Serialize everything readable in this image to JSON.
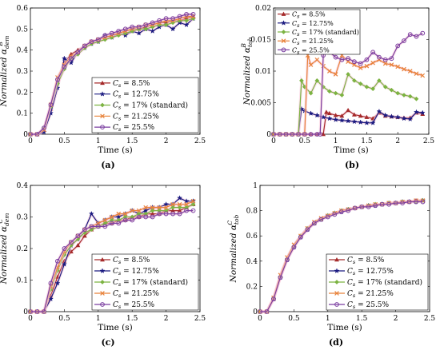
{
  "colors": {
    "8.5%": "#a52a2a",
    "12.75%": "#1a1a80",
    "17% (standard)": "#7cb342",
    "21.25%": "#e8823a",
    "25.5%": "#7b3fa0",
    "glow": "#f7c6d9"
  },
  "chart_data": [
    {
      "type": "line",
      "panel_label": "(a)",
      "xlabel": "Time (s)",
      "ylabel_main": "Normalized α",
      "ylabel_sub": "dem",
      "ylabel_sup": "B",
      "xlim": [
        0,
        2.5
      ],
      "ylim": [
        0,
        0.6
      ],
      "xticks": [
        0,
        0.5,
        1,
        1.5,
        2,
        2.5
      ],
      "yticks": [
        0,
        0.1,
        0.2,
        0.3,
        0.4,
        0.5,
        0.6
      ],
      "xtick_labels": [
        "0",
        "0.5",
        "1",
        "1.5",
        "2",
        "2.5"
      ],
      "ytick_labels": [
        "0",
        "0.1",
        "0.2",
        "0.3",
        "0.4",
        "0.5",
        "0.6"
      ],
      "legend": "bottom-right",
      "legend_labels": [
        "C_s = 8.5%",
        "C_s = 12.75%",
        "C_s = 17% (standard)",
        "C_s = 21.25%",
        "C_s = 25.5%"
      ],
      "x": [
        0,
        0.1,
        0.2,
        0.3,
        0.4,
        0.5,
        0.6,
        0.7,
        0.8,
        0.9,
        1.0,
        1.1,
        1.2,
        1.3,
        1.4,
        1.5,
        1.6,
        1.7,
        1.8,
        1.9,
        2.0,
        2.1,
        2.2,
        2.3,
        2.4
      ],
      "series": [
        {
          "key": "8.5%",
          "marker": "triangle",
          "values": [
            0,
            0,
            0.02,
            0.12,
            0.25,
            0.34,
            0.38,
            0.4,
            0.42,
            0.44,
            0.45,
            0.46,
            0.47,
            0.48,
            0.49,
            0.5,
            0.5,
            0.51,
            0.52,
            0.53,
            0.53,
            0.54,
            0.54,
            0.55,
            0.56
          ]
        },
        {
          "key": "12.75%",
          "marker": "star",
          "values": [
            0,
            0,
            0.01,
            0.1,
            0.22,
            0.36,
            0.34,
            0.39,
            0.41,
            0.43,
            0.44,
            0.47,
            0.46,
            0.48,
            0.47,
            0.49,
            0.48,
            0.5,
            0.49,
            0.51,
            0.52,
            0.5,
            0.53,
            0.52,
            0.55
          ]
        },
        {
          "key": "17% (standard)",
          "marker": "diamond",
          "values": [
            0,
            0,
            0.03,
            0.13,
            0.24,
            0.31,
            0.36,
            0.38,
            0.41,
            0.43,
            0.44,
            0.45,
            0.46,
            0.47,
            0.48,
            0.49,
            0.5,
            0.5,
            0.51,
            0.52,
            0.52,
            0.53,
            0.54,
            0.54,
            0.55
          ]
        },
        {
          "key": "21.25%",
          "marker": "x",
          "values": [
            0,
            0,
            0.02,
            0.14,
            0.27,
            0.33,
            0.37,
            0.39,
            0.42,
            0.44,
            0.45,
            0.46,
            0.47,
            0.48,
            0.49,
            0.5,
            0.51,
            0.52,
            0.52,
            0.53,
            0.54,
            0.54,
            0.55,
            0.56,
            0.56
          ]
        },
        {
          "key": "25.5%",
          "marker": "circle",
          "values": [
            0,
            0,
            0.03,
            0.14,
            0.26,
            0.32,
            0.36,
            0.39,
            0.42,
            0.44,
            0.45,
            0.47,
            0.48,
            0.49,
            0.5,
            0.51,
            0.51,
            0.52,
            0.53,
            0.54,
            0.55,
            0.55,
            0.56,
            0.57,
            0.57
          ]
        }
      ]
    },
    {
      "type": "line",
      "panel_label": "(b)",
      "xlabel": "Time (s)",
      "ylabel_main": "Normalized α",
      "ylabel_sub": "tob",
      "ylabel_sup": "B",
      "xlim": [
        0,
        2.5
      ],
      "ylim": [
        0,
        0.02
      ],
      "xticks": [
        0,
        0.5,
        1,
        1.5,
        2,
        2.5
      ],
      "yticks": [
        0,
        0.005,
        0.01,
        0.015,
        0.02
      ],
      "xtick_labels": [
        "0",
        "0.5",
        "1",
        "1.5",
        "2",
        "2.5"
      ],
      "ytick_labels": [
        "0",
        "0.005",
        "0.01",
        "0.015",
        "0.02"
      ],
      "legend": "top-left",
      "legend_labels": [
        "C_s = 8.5%",
        "C_s = 12.75%",
        "C_s = 17% (standard)",
        "C_s = 21.25%",
        "C_s = 25.5%"
      ],
      "series": [
        {
          "key": "8.5%",
          "marker": "triangle",
          "x": [
            0,
            0.1,
            0.2,
            0.3,
            0.4,
            0.5,
            0.6,
            0.7,
            0.8,
            0.85,
            0.9,
            1.0,
            1.1,
            1.2,
            1.3,
            1.4,
            1.5,
            1.6,
            1.7,
            1.8,
            1.9,
            2.0,
            2.1,
            2.2,
            2.3,
            2.4
          ],
          "values": [
            0,
            0,
            0,
            0,
            0,
            0,
            0,
            0,
            0,
            0.0035,
            0.0033,
            0.003,
            0.0029,
            0.0038,
            0.0031,
            0.0029,
            0.0027,
            0.0025,
            0.0034,
            0.0029,
            0.0028,
            0.0027,
            0.0026,
            0.0026,
            0.0034,
            0.0032
          ]
        },
        {
          "key": "12.75%",
          "marker": "star",
          "x": [
            0,
            0.1,
            0.2,
            0.3,
            0.4,
            0.45,
            0.5,
            0.6,
            0.7,
            0.8,
            0.9,
            1.0,
            1.1,
            1.2,
            1.3,
            1.4,
            1.5,
            1.6,
            1.7,
            1.8,
            1.9,
            2.0,
            2.1,
            2.2,
            2.3,
            2.4
          ],
          "values": [
            0,
            0,
            0,
            0,
            0,
            0.004,
            0.0037,
            0.0033,
            0.003,
            0.0027,
            0.0025,
            0.0023,
            0.0022,
            0.0021,
            0.002,
            0.0019,
            0.0018,
            0.0018,
            0.0036,
            0.003,
            0.0028,
            0.0027,
            0.0025,
            0.0024,
            0.0035,
            0.0034
          ]
        },
        {
          "key": "17% (standard)",
          "marker": "diamond",
          "x": [
            0,
            0.1,
            0.2,
            0.3,
            0.4,
            0.45,
            0.5,
            0.6,
            0.7,
            0.8,
            0.9,
            1.0,
            1.1,
            1.2,
            1.3,
            1.4,
            1.5,
            1.6,
            1.7,
            1.8,
            1.9,
            2.0,
            2.1,
            2.2,
            2.3
          ],
          "values": [
            0,
            0,
            0,
            0,
            0,
            0.0085,
            0.0075,
            0.0065,
            0.0085,
            0.0075,
            0.0068,
            0.0065,
            0.0062,
            0.0095,
            0.0085,
            0.008,
            0.0075,
            0.0072,
            0.0085,
            0.0075,
            0.007,
            0.0065,
            0.0062,
            0.006,
            0.0056
          ]
        },
        {
          "key": "21.25%",
          "marker": "x",
          "x": [
            0,
            0.1,
            0.2,
            0.3,
            0.4,
            0.5,
            0.55,
            0.6,
            0.7,
            0.8,
            0.9,
            1.0,
            1.1,
            1.2,
            1.3,
            1.4,
            1.5,
            1.6,
            1.7,
            1.8,
            1.9,
            2.0,
            2.1,
            2.2,
            2.3,
            2.4
          ],
          "values": [
            0,
            0,
            0,
            0,
            0,
            0,
            0.0125,
            0.011,
            0.0118,
            0.0108,
            0.01,
            0.0095,
            0.0125,
            0.0115,
            0.011,
            0.0105,
            0.0108,
            0.0113,
            0.0118,
            0.0112,
            0.011,
            0.0107,
            0.0103,
            0.01,
            0.0096,
            0.0093
          ]
        },
        {
          "key": "25.5%",
          "marker": "circle",
          "x": [
            0,
            0.1,
            0.2,
            0.3,
            0.4,
            0.5,
            0.6,
            0.7,
            0.75,
            0.8,
            0.85,
            0.9,
            1.0,
            1.1,
            1.2,
            1.3,
            1.4,
            1.5,
            1.6,
            1.7,
            1.8,
            1.9,
            2.0,
            2.1,
            2.2,
            2.3,
            2.4
          ],
          "values": [
            0,
            0,
            0,
            0,
            0,
            0,
            0,
            0,
            0,
            0.0125,
            0.014,
            0.013,
            0.0122,
            0.0118,
            0.012,
            0.0115,
            0.0112,
            0.0118,
            0.013,
            0.0122,
            0.0118,
            0.012,
            0.014,
            0.0148,
            0.0158,
            0.0155,
            0.016
          ]
        }
      ]
    },
    {
      "type": "line",
      "panel_label": "(c)",
      "xlabel": "Time (s)",
      "ylabel_main": "Normalized α",
      "ylabel_sub": "dem",
      "ylabel_sup": "C",
      "xlim": [
        0,
        2.5
      ],
      "ylim": [
        0,
        0.4
      ],
      "xticks": [
        0,
        0.5,
        1,
        1.5,
        2,
        2.5
      ],
      "yticks": [
        0,
        0.1,
        0.2,
        0.3,
        0.4
      ],
      "xtick_labels": [
        "0",
        "0.5",
        "1",
        "1.5",
        "2",
        "2.5"
      ],
      "ytick_labels": [
        "0",
        "0.1",
        "0.2",
        "0.3",
        "0.4"
      ],
      "legend": "bottom-right",
      "legend_labels": [
        "C_s = 8.5%",
        "C_s = 12.75%",
        "C_s = 17% (standard)",
        "C_s = 21.25%",
        "C_s = 25.5%"
      ],
      "x": [
        0,
        0.1,
        0.2,
        0.3,
        0.4,
        0.5,
        0.6,
        0.7,
        0.8,
        0.9,
        1.0,
        1.1,
        1.2,
        1.3,
        1.4,
        1.5,
        1.6,
        1.7,
        1.8,
        1.9,
        2.0,
        2.1,
        2.2,
        2.3,
        2.4
      ],
      "series": [
        {
          "key": "8.5%",
          "marker": "triangle",
          "values": [
            0,
            0,
            0,
            0.05,
            0.11,
            0.16,
            0.19,
            0.21,
            0.24,
            0.26,
            0.27,
            0.28,
            0.28,
            0.29,
            0.29,
            0.3,
            0.3,
            0.31,
            0.31,
            0.31,
            0.32,
            0.32,
            0.32,
            0.33,
            0.34
          ]
        },
        {
          "key": "12.75%",
          "marker": "star",
          "values": [
            0,
            0,
            0,
            0.04,
            0.09,
            0.15,
            0.21,
            0.23,
            0.26,
            0.31,
            0.28,
            0.29,
            0.3,
            0.3,
            0.31,
            0.32,
            0.31,
            0.32,
            0.33,
            0.33,
            0.34,
            0.34,
            0.36,
            0.35,
            0.35
          ]
        },
        {
          "key": "17% (standard)",
          "marker": "diamond",
          "values": [
            0,
            0,
            0,
            0.07,
            0.13,
            0.18,
            0.21,
            0.23,
            0.25,
            0.26,
            0.27,
            0.28,
            0.29,
            0.29,
            0.3,
            0.3,
            0.31,
            0.31,
            0.32,
            0.32,
            0.32,
            0.33,
            0.33,
            0.33,
            0.34
          ]
        },
        {
          "key": "21.25%",
          "marker": "x",
          "values": [
            0,
            0,
            0,
            0.08,
            0.14,
            0.19,
            0.22,
            0.24,
            0.26,
            0.27,
            0.28,
            0.29,
            0.3,
            0.31,
            0.31,
            0.32,
            0.32,
            0.33,
            0.33,
            0.33,
            0.33,
            0.34,
            0.34,
            0.34,
            0.35
          ]
        },
        {
          "key": "25.5%",
          "marker": "circle",
          "values": [
            0,
            0,
            0,
            0.09,
            0.16,
            0.2,
            0.22,
            0.24,
            0.26,
            0.27,
            0.27,
            0.27,
            0.28,
            0.28,
            0.29,
            0.29,
            0.3,
            0.3,
            0.3,
            0.31,
            0.31,
            0.31,
            0.31,
            0.32,
            0.32
          ]
        }
      ]
    },
    {
      "type": "line",
      "panel_label": "(d)",
      "xlabel": "Time (s)",
      "ylabel_main": "Normalized α",
      "ylabel_sub": "tob",
      "ylabel_sup": "C",
      "xlim": [
        0,
        2.5
      ],
      "ylim": [
        0,
        1
      ],
      "xticks": [
        0,
        0.5,
        1,
        1.5,
        2,
        2.5
      ],
      "yticks": [
        0,
        0.2,
        0.4,
        0.6,
        0.8,
        1
      ],
      "xtick_labels": [
        "0",
        "0.5",
        "1",
        "1.5",
        "2",
        "2.5"
      ],
      "ytick_labels": [
        "0",
        "0.2",
        "0.4",
        "0.6",
        "0.8",
        "1"
      ],
      "legend": "bottom-right",
      "legend_labels": [
        "C_s = 8.5%",
        "C_s = 12.75%",
        "C_s = 17% (standard)",
        "C_s = 21.25%",
        "C_s = 25.5%"
      ],
      "x": [
        0,
        0.1,
        0.2,
        0.3,
        0.4,
        0.5,
        0.6,
        0.7,
        0.8,
        0.9,
        1.0,
        1.1,
        1.2,
        1.3,
        1.4,
        1.5,
        1.6,
        1.7,
        1.8,
        1.9,
        2.0,
        2.1,
        2.2,
        2.3,
        2.4
      ],
      "series": [
        {
          "key": "8.5%",
          "marker": "triangle",
          "values": [
            0,
            0,
            0.1,
            0.28,
            0.42,
            0.52,
            0.6,
            0.66,
            0.7,
            0.73,
            0.76,
            0.78,
            0.8,
            0.81,
            0.82,
            0.83,
            0.84,
            0.85,
            0.85,
            0.86,
            0.86,
            0.87,
            0.87,
            0.88,
            0.88
          ]
        },
        {
          "key": "12.75%",
          "marker": "star",
          "values": [
            0,
            0,
            0.1,
            0.27,
            0.41,
            0.51,
            0.59,
            0.65,
            0.7,
            0.73,
            0.76,
            0.78,
            0.79,
            0.81,
            0.82,
            0.83,
            0.84,
            0.84,
            0.85,
            0.86,
            0.86,
            0.87,
            0.87,
            0.87,
            0.88
          ]
        },
        {
          "key": "17% (standard)",
          "marker": "diamond",
          "values": [
            0,
            0,
            0.11,
            0.28,
            0.42,
            0.52,
            0.6,
            0.66,
            0.7,
            0.73,
            0.76,
            0.78,
            0.8,
            0.81,
            0.82,
            0.83,
            0.84,
            0.85,
            0.85,
            0.86,
            0.86,
            0.87,
            0.87,
            0.87,
            0.88
          ]
        },
        {
          "key": "21.25%",
          "marker": "x",
          "values": [
            0,
            0,
            0.11,
            0.29,
            0.43,
            0.53,
            0.6,
            0.66,
            0.71,
            0.74,
            0.76,
            0.78,
            0.8,
            0.81,
            0.82,
            0.83,
            0.84,
            0.85,
            0.85,
            0.86,
            0.86,
            0.87,
            0.87,
            0.88,
            0.88
          ]
        },
        {
          "key": "25.5%",
          "marker": "circle",
          "values": [
            0,
            0,
            0.1,
            0.27,
            0.41,
            0.51,
            0.59,
            0.65,
            0.7,
            0.73,
            0.75,
            0.77,
            0.79,
            0.8,
            0.82,
            0.83,
            0.83,
            0.84,
            0.85,
            0.85,
            0.86,
            0.86,
            0.87,
            0.87,
            0.87
          ]
        }
      ]
    }
  ]
}
